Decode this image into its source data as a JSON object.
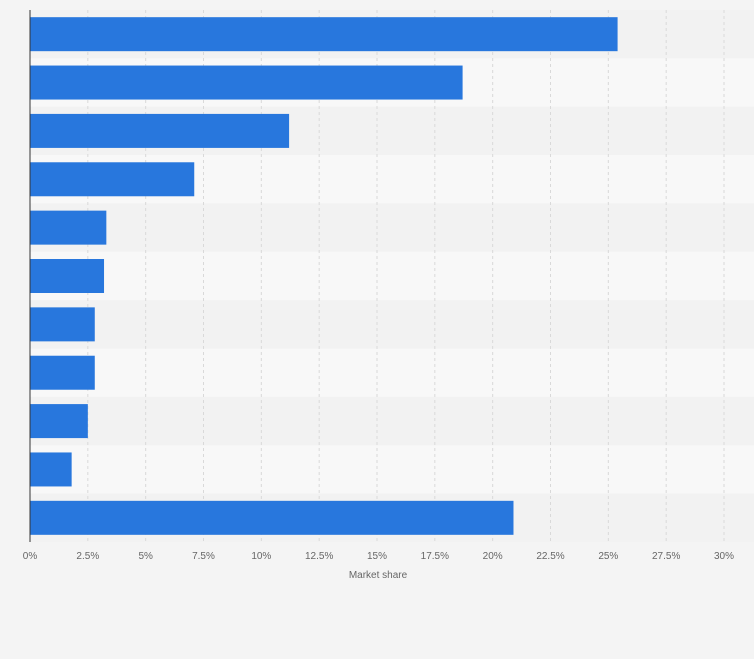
{
  "chart_data": {
    "type": "bar",
    "orientation": "horizontal",
    "categories": [
      "",
      "",
      "",
      "",
      "",
      "",
      "",
      "",
      "",
      "",
      ""
    ],
    "values": [
      25.4,
      18.7,
      11.2,
      7.1,
      3.3,
      3.2,
      2.8,
      2.8,
      2.5,
      1.8,
      20.9
    ],
    "title": "",
    "xlabel": "Market share",
    "ylabel": "",
    "xlim": [
      0,
      30
    ],
    "x_ticks": [
      0,
      2.5,
      5,
      7.5,
      10,
      12.5,
      15,
      17.5,
      20,
      22.5,
      25,
      27.5,
      30
    ],
    "x_tick_labels": [
      "0%",
      "2.5%",
      "5%",
      "7.5%",
      "10%",
      "12.5%",
      "15%",
      "17.5%",
      "20%",
      "22.5%",
      "25%",
      "27.5%",
      "30%"
    ],
    "grid": "vertical dashed",
    "legend": "none",
    "colors": {
      "bar": "#2877dd",
      "band_dark": "#f2f2f2",
      "band_light": "#f8f8f8",
      "grid": "#d9d9d9",
      "axis": "#333333",
      "text": "#666666"
    }
  }
}
